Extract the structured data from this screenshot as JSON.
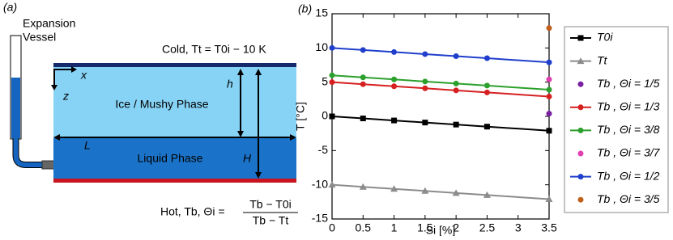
{
  "diagram": {
    "panel_label": "(a)",
    "vessel_label": [
      "Expansion",
      "Vessel"
    ],
    "cold_label": "Cold, Tt = T0i − 10 K",
    "x_axis": "x",
    "z_axis": "z",
    "h_label": "h",
    "ice_label": "Ice / Mushy Phase",
    "l_label": "L",
    "liquid_label": "Liquid Phase",
    "big_h_label": "H",
    "hot_label": "Hot, Tb, Θi =",
    "hot_numerator": "Tb − T0i",
    "hot_denominator": "Tb − Tt"
  },
  "chart_data": {
    "type": "line",
    "panel_label": "(b)",
    "x_label": "Si [%]",
    "y_label": "T [°C]",
    "x": [
      0,
      0.5,
      1,
      1.5,
      2,
      2.5,
      3.5
    ],
    "xlim": [
      0,
      3.5
    ],
    "xticks": [
      0,
      0.5,
      1,
      1.5,
      2,
      2.5,
      3,
      3.5
    ],
    "ylim": [
      -15,
      15
    ],
    "yticks": [
      -15,
      -10,
      -5,
      0,
      5,
      10,
      15
    ],
    "series": [
      {
        "name": "T0i",
        "color": "#000000",
        "marker": "square",
        "values": [
          0,
          -0.3,
          -0.6,
          -0.9,
          -1.2,
          -1.5,
          -2.1
        ]
      },
      {
        "name": "Tt",
        "color": "#8c8c8c",
        "marker": "triangle",
        "values": [
          -10,
          -10.3,
          -10.6,
          -10.9,
          -11.2,
          -11.5,
          -12.1
        ]
      },
      {
        "name": "Tb , Θi = 1/5",
        "color": "#7b1fa2",
        "marker": "circle",
        "values": [
          null,
          null,
          null,
          null,
          null,
          null,
          0.4
        ]
      },
      {
        "name": "Tb , Θi = 1/3",
        "color": "#d62020",
        "marker": "circle",
        "values": [
          5,
          4.7,
          4.4,
          4.1,
          3.8,
          3.5,
          2.9
        ]
      },
      {
        "name": "Tb , Θi = 3/8",
        "color": "#2ca02c",
        "marker": "circle",
        "values": [
          6,
          5.7,
          5.4,
          5.1,
          4.8,
          4.5,
          3.9
        ]
      },
      {
        "name": "Tb , Θi = 3/7",
        "color": "#e040b0",
        "marker": "circle",
        "values": [
          null,
          null,
          null,
          null,
          null,
          null,
          5.4
        ]
      },
      {
        "name": "Tb , Θi = 1/2",
        "color": "#1f3fcc",
        "marker": "circle",
        "values": [
          10,
          9.7,
          9.4,
          9.1,
          8.8,
          8.5,
          7.9
        ]
      },
      {
        "name": "Tb , Θi = 3/5",
        "color": "#c0601a",
        "marker": "circle",
        "values": [
          null,
          null,
          null,
          null,
          null,
          null,
          12.9
        ]
      }
    ]
  }
}
